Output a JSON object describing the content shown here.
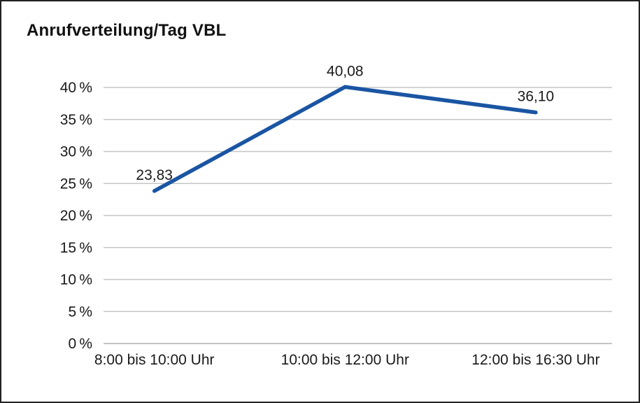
{
  "title": "Anrufverteilung/Tag VBL",
  "chart_data": {
    "type": "line",
    "title": "Anrufverteilung/Tag VBL",
    "categories": [
      "8:00 bis 10:00 Uhr",
      "10:00 bis 12:00 Uhr",
      "12:00 bis 16:30 Uhr"
    ],
    "values": [
      23.83,
      40.08,
      36.1
    ],
    "point_labels": [
      "23,83",
      "40,08",
      "36,10"
    ],
    "xlabel": "",
    "ylabel": "",
    "ylim": [
      0,
      40
    ],
    "y_tick_step": 5,
    "y_tick_suffix": " %",
    "grid": true,
    "legend_position": "none",
    "colors": {
      "line": "#1a55a3",
      "text": "#1a1a1a",
      "grid": "#c6c6c6",
      "baseline": "#b0b0b0",
      "border": "#222222"
    }
  }
}
